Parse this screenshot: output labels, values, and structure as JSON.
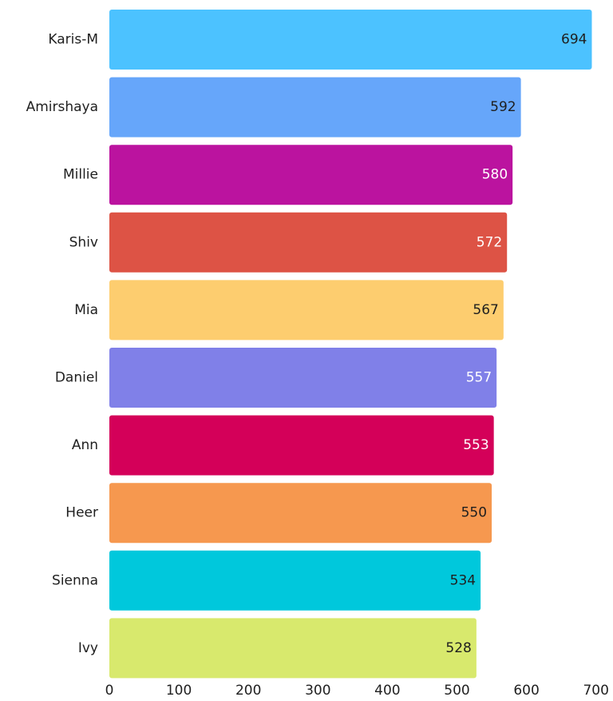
{
  "chart_data": {
    "type": "bar",
    "orientation": "horizontal",
    "title": "",
    "xlabel": "",
    "ylabel": "",
    "categories": [
      "Karis-M",
      "Amirshaya",
      "Millie",
      "Shiv",
      "Mia",
      "Daniel",
      "Ann",
      "Heer",
      "Sienna",
      "Ivy"
    ],
    "values": [
      694,
      592,
      580,
      572,
      567,
      557,
      553,
      550,
      534,
      528
    ],
    "colors": [
      "#4cc2ff",
      "#66a6fa",
      "#bb139f",
      "#dd5345",
      "#fdcd6f",
      "#8080e8",
      "#d40059",
      "#f6984f",
      "#00c8dc",
      "#d8e96d"
    ],
    "label_colors": [
      "#1f1f1f",
      "#1f1f1f",
      "#ffffff",
      "#ffffff",
      "#1f1f1f",
      "#ffffff",
      "#ffffff",
      "#1f1f1f",
      "#1f1f1f",
      "#1f1f1f"
    ],
    "xlim": [
      0,
      700
    ],
    "x_ticks": [
      0,
      100,
      200,
      300,
      400,
      500,
      600,
      700
    ],
    "grid": false,
    "legend": "none"
  }
}
